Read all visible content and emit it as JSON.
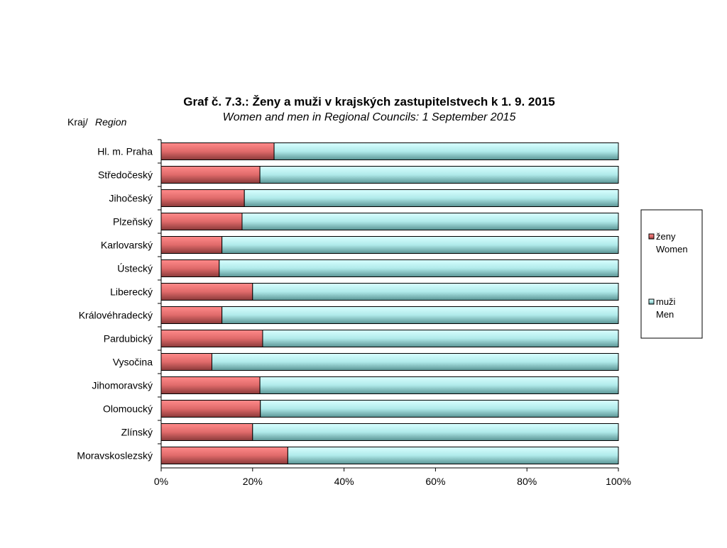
{
  "chart_data": {
    "type": "bar",
    "orientation": "horizontal",
    "stacked": "percent",
    "title": "Graf č. 7.3.: Ženy a muži v krajských zastupitelstvech k 1. 9. 2015",
    "subtitle": "Women and men in Regional Councils: 1 September 2015",
    "ylabel_cz": "Kraj/",
    "ylabel_en": "Region",
    "xlim": [
      0,
      100
    ],
    "xticks": [
      "0%",
      "20%",
      "40%",
      "60%",
      "80%",
      "100%"
    ],
    "categories": [
      "Hl. m. Praha",
      "Středočeský",
      "Jihočeský",
      "Plzeňský",
      "Karlovarský",
      "Ústecký",
      "Liberecký",
      "Královéhradecký",
      "Pardubický",
      "Vysočina",
      "Jihomoravský",
      "Olomoucký",
      "Zlínský",
      "Moravskoslezský"
    ],
    "series": [
      {
        "name": "ženy",
        "name_en": "Women",
        "color": "#e06060",
        "values": [
          24.7,
          21.6,
          18.2,
          17.7,
          13.3,
          12.7,
          20.0,
          13.3,
          22.2,
          11.1,
          21.6,
          21.7,
          20.0,
          27.7
        ]
      },
      {
        "name": "muži",
        "name_en": "Men",
        "color": "#a8e8e8",
        "values": [
          75.3,
          78.4,
          81.8,
          82.3,
          86.7,
          87.3,
          80.0,
          86.7,
          77.8,
          88.9,
          78.4,
          78.3,
          80.0,
          72.3
        ]
      }
    ],
    "legend": "right"
  }
}
